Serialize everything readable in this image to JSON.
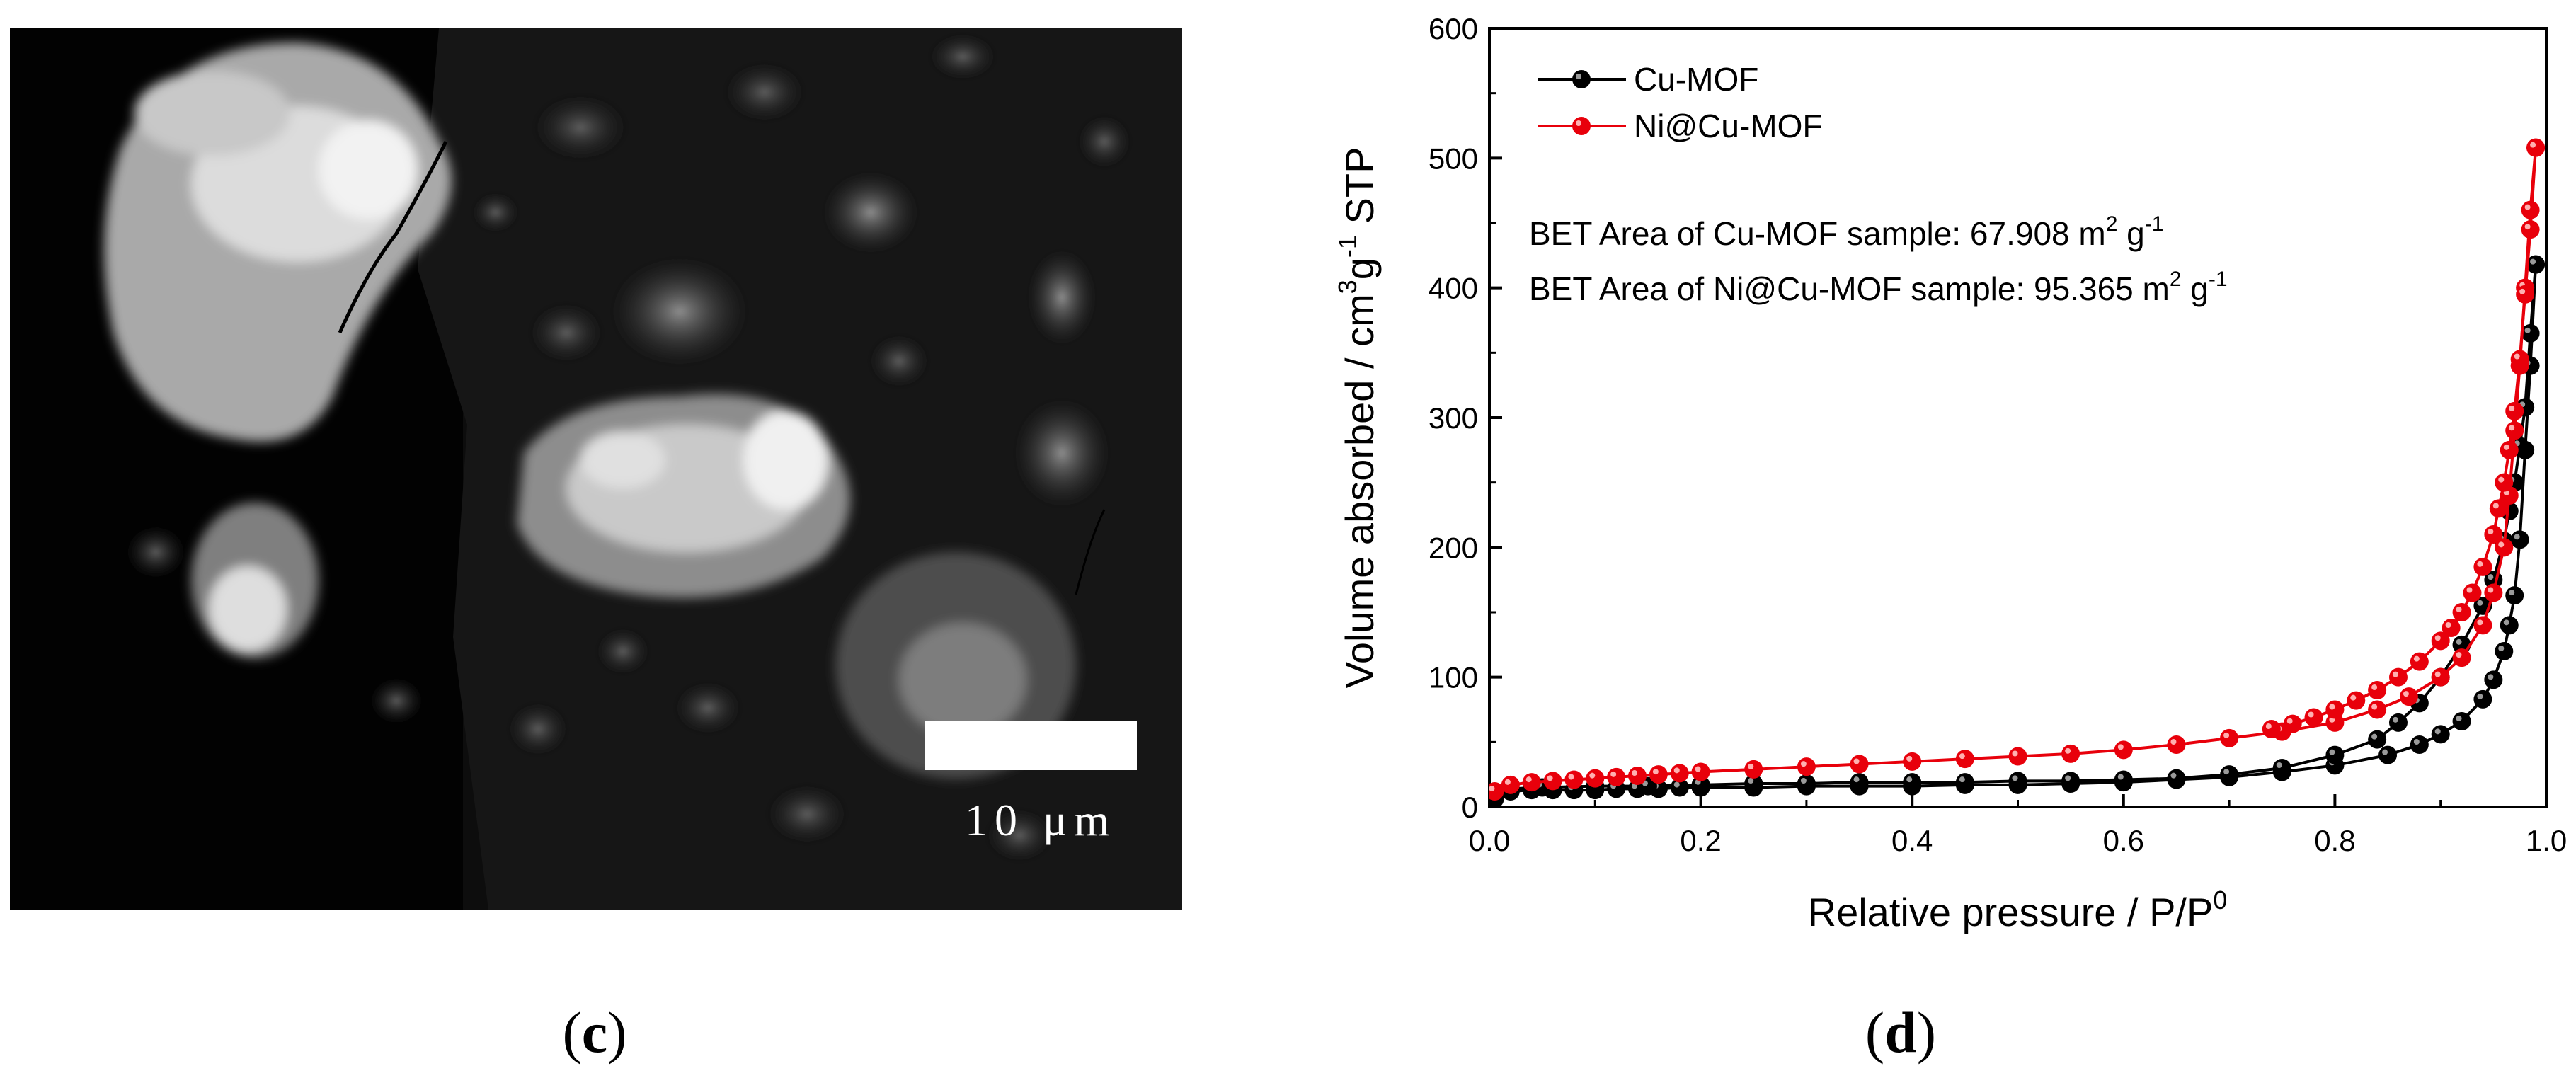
{
  "panels": {
    "c": {
      "label": "c",
      "scale_bar_text": "10 μm"
    },
    "d": {
      "label": "d"
    }
  },
  "chart_data": {
    "type": "line",
    "xlabel": "Relative pressure / P/P",
    "xlabel_superscript": "0",
    "ylabel": "Volume absorbed / cm",
    "ylabel_sup1": "3",
    "ylabel_mid": "g",
    "ylabel_sup2": "-1",
    "ylabel_end": " STP",
    "xlim": [
      0.0,
      1.0
    ],
    "ylim": [
      0,
      600
    ],
    "x_ticks": [
      "0.0",
      "0.2",
      "0.4",
      "0.6",
      "0.8",
      "1.0"
    ],
    "y_ticks": [
      "0",
      "100",
      "200",
      "300",
      "400",
      "500",
      "600"
    ],
    "legend_position": "top-left",
    "annotations": [
      {
        "prefix": "BET Area of Cu-MOF sample: 67.908 m",
        "sup1": "2",
        "mid": " g",
        "sup2": "-1"
      },
      {
        "prefix": "BET Area of Ni@Cu-MOF sample: 95.365 m",
        "sup1": "2",
        "mid": " g",
        "sup2": "-1"
      }
    ],
    "series": [
      {
        "name": "Cu-MOF",
        "color": "#000000",
        "adsorption": {
          "x": [
            0.005,
            0.02,
            0.04,
            0.06,
            0.08,
            0.1,
            0.12,
            0.14,
            0.16,
            0.18,
            0.2,
            0.25,
            0.3,
            0.35,
            0.4,
            0.45,
            0.5,
            0.55,
            0.6,
            0.65,
            0.7,
            0.75,
            0.8,
            0.85,
            0.88,
            0.9,
            0.92,
            0.94,
            0.95,
            0.96,
            0.965,
            0.97,
            0.975,
            0.98,
            0.985,
            0.99
          ],
          "y": [
            6,
            12,
            13,
            13,
            13,
            13,
            14,
            14,
            14,
            15,
            15,
            15,
            16,
            16,
            16,
            17,
            17,
            18,
            19,
            21,
            23,
            27,
            32,
            40,
            48,
            56,
            66,
            83,
            98,
            120,
            140,
            163,
            206,
            275,
            340,
            418
          ]
        },
        "desorption": {
          "x": [
            0.99,
            0.985,
            0.98,
            0.975,
            0.97,
            0.965,
            0.96,
            0.95,
            0.94,
            0.92,
            0.9,
            0.88,
            0.86,
            0.84,
            0.8,
            0.75,
            0.7,
            0.65,
            0.6,
            0.55,
            0.5,
            0.45,
            0.4,
            0.35,
            0.3,
            0.25,
            0.2,
            0.15,
            0.1,
            0.05,
            0.02
          ],
          "y": [
            418,
            365,
            308,
            278,
            250,
            228,
            205,
            175,
            155,
            125,
            100,
            80,
            65,
            52,
            40,
            30,
            25,
            22,
            21,
            20,
            20,
            19,
            19,
            19,
            18,
            18,
            17,
            16,
            16,
            15,
            14
          ]
        }
      },
      {
        "name": "Ni@Cu-MOF",
        "color": "#e8000b",
        "adsorption": {
          "x": [
            0.005,
            0.02,
            0.04,
            0.06,
            0.08,
            0.1,
            0.12,
            0.14,
            0.16,
            0.18,
            0.2,
            0.25,
            0.3,
            0.35,
            0.4,
            0.45,
            0.5,
            0.55,
            0.6,
            0.65,
            0.7,
            0.75,
            0.8,
            0.84,
            0.87,
            0.9,
            0.92,
            0.94,
            0.95,
            0.96,
            0.965,
            0.97,
            0.975,
            0.98,
            0.985,
            0.99
          ],
          "y": [
            12,
            17,
            19,
            20,
            21,
            22,
            23,
            24,
            25,
            26,
            27,
            29,
            31,
            33,
            35,
            37,
            39,
            41,
            44,
            48,
            53,
            58,
            65,
            75,
            85,
            100,
            115,
            140,
            165,
            200,
            240,
            290,
            340,
            400,
            460,
            508
          ]
        },
        "desorption": {
          "x": [
            0.99,
            0.985,
            0.98,
            0.975,
            0.97,
            0.965,
            0.96,
            0.955,
            0.95,
            0.94,
            0.93,
            0.92,
            0.91,
            0.9,
            0.88,
            0.86,
            0.84,
            0.82,
            0.8,
            0.78,
            0.76,
            0.74
          ],
          "y": [
            508,
            445,
            395,
            345,
            305,
            275,
            250,
            230,
            210,
            185,
            165,
            150,
            138,
            128,
            112,
            100,
            90,
            82,
            75,
            69,
            64,
            60
          ]
        }
      }
    ]
  }
}
